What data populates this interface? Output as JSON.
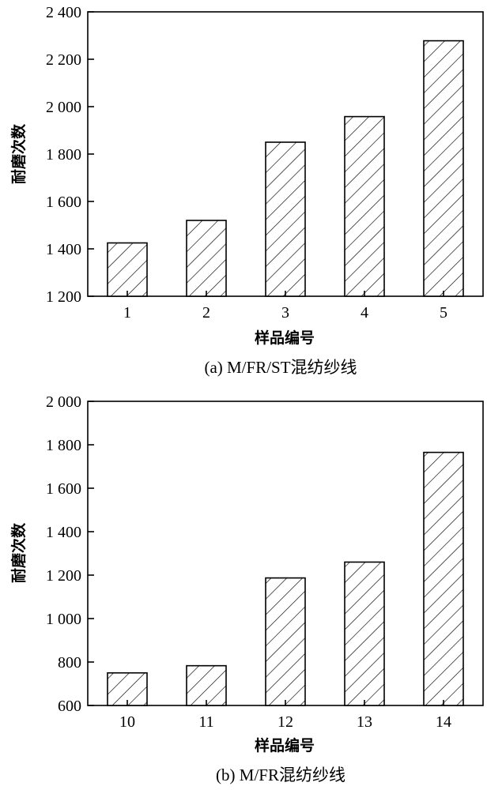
{
  "chart_data": [
    {
      "type": "bar",
      "categories": [
        "1",
        "2",
        "3",
        "4",
        "5"
      ],
      "values": [
        1425,
        1520,
        1850,
        1958,
        2278
      ],
      "title": "",
      "caption": "(a) M/FR/ST混纺纱线",
      "xlabel": "样品编号",
      "ylabel": "耐磨次数",
      "ylim": [
        1200,
        2400
      ],
      "yticks": [
        1200,
        1400,
        1600,
        1800,
        2000,
        2200,
        2400
      ],
      "ytick_labels": [
        "1 200",
        "1 400",
        "1 600",
        "1 800",
        "2 000",
        "2 200",
        "2 400"
      ],
      "grid": false,
      "bar_pattern": "diagonal-hatch"
    },
    {
      "type": "bar",
      "categories": [
        "10",
        "11",
        "12",
        "13",
        "14"
      ],
      "values": [
        750,
        783,
        1187,
        1260,
        1765
      ],
      "title": "",
      "caption": "(b) M/FR混纺纱线",
      "xlabel": "样品编号",
      "ylabel": "耐磨次数",
      "ylim": [
        600,
        2000
      ],
      "yticks": [
        600,
        800,
        1000,
        1200,
        1400,
        1600,
        1800,
        2000
      ],
      "ytick_labels": [
        "600",
        "800",
        "1 000",
        "1 200",
        "1 400",
        "1 600",
        "1 800",
        "2 000"
      ],
      "grid": false,
      "bar_pattern": "diagonal-hatch"
    }
  ]
}
